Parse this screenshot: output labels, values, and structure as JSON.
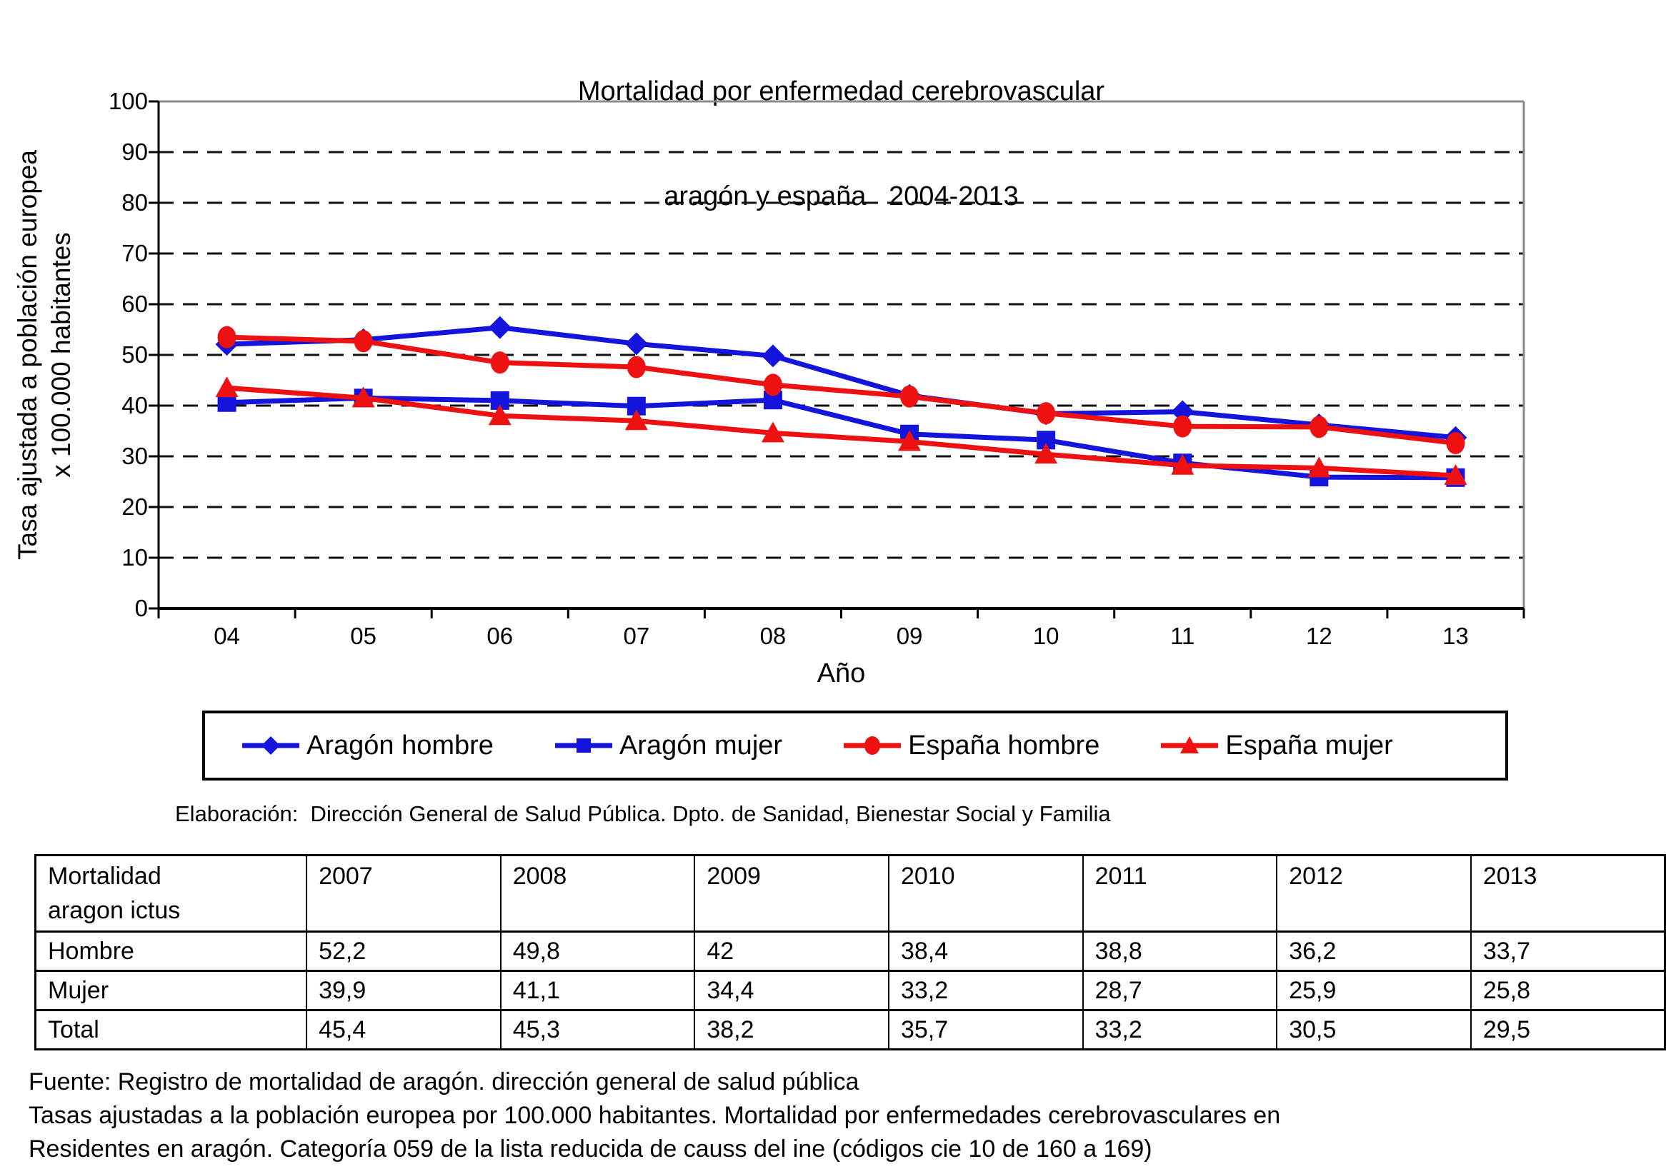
{
  "chart_data": {
    "type": "line",
    "title_lines": [
      "Mortalidad por enfermedad cerebrovascular",
      "aragón y españa   2004-2013"
    ],
    "xlabel": "Año",
    "ylabel_lines": [
      "Tasa ajustada a población europea",
      "x 100.000 habitantes"
    ],
    "categories": [
      "04",
      "05",
      "06",
      "07",
      "08",
      "09",
      "10",
      "11",
      "12",
      "13"
    ],
    "ylim": [
      0,
      100
    ],
    "ytick_step": 10,
    "grid": "horizontal-dashed",
    "legend_position": "bottom",
    "colors": {
      "aragon": "#1414dd",
      "espana": "#ee1111",
      "plot_border": "#8a8a8a",
      "axis": "#000000"
    },
    "series": [
      {
        "name": "Aragón hombre",
        "color": "#1414dd",
        "marker": "diamond",
        "values": [
          52.1,
          53.0,
          55.4,
          52.2,
          49.8,
          42.0,
          38.4,
          38.8,
          36.2,
          33.7
        ]
      },
      {
        "name": "Aragón mujer",
        "color": "#1414dd",
        "marker": "square",
        "values": [
          40.6,
          41.5,
          41.0,
          39.9,
          41.1,
          34.4,
          33.2,
          28.7,
          25.9,
          25.8
        ]
      },
      {
        "name": "España hombre",
        "color": "#ee1111",
        "marker": "circle",
        "values": [
          53.5,
          52.7,
          48.5,
          47.6,
          44.1,
          41.8,
          38.5,
          35.9,
          35.8,
          32.6
        ]
      },
      {
        "name": "España mujer",
        "color": "#ee1111",
        "marker": "triangle",
        "values": [
          43.5,
          41.5,
          38.0,
          37.0,
          34.6,
          32.9,
          30.4,
          28.2,
          27.7,
          26.2
        ]
      }
    ]
  },
  "notes": {
    "elaboracion": "Elaboración:  Dirección General de Salud Pública. Dpto. de Sanidad, Bienestar Social y Familia"
  },
  "table": {
    "header_first_lines": [
      "Mortalidad",
      "aragon ictus"
    ],
    "year_headers": [
      "2007",
      "2008",
      "2009",
      "2010",
      "2011",
      "2012",
      "2013"
    ],
    "rows": [
      {
        "label": "Hombre",
        "values": [
          "52,2",
          "49,8",
          "42",
          "38,4",
          "38,8",
          "36,2",
          "33,7"
        ]
      },
      {
        "label": "Mujer",
        "values": [
          "39,9",
          "41,1",
          "34,4",
          "33,2",
          "28,7",
          "25,9",
          "25,8"
        ]
      },
      {
        "label": "Total",
        "values": [
          "45,4",
          "45,3",
          "38,2",
          "35,7",
          "33,2",
          "30,5",
          "29,5"
        ]
      }
    ]
  },
  "footer": {
    "lines": [
      "Fuente: Registro de mortalidad de aragón. dirección general de salud pública",
      "Tasas ajustadas a la población europea por 100.000 habitantes. Mortalidad por enfermedades cerebrovasculares en",
      "Residentes en aragón. Categoría 059 de la lista reducida de causs del ine (códigos cie 10 de 160 a 169)"
    ]
  }
}
